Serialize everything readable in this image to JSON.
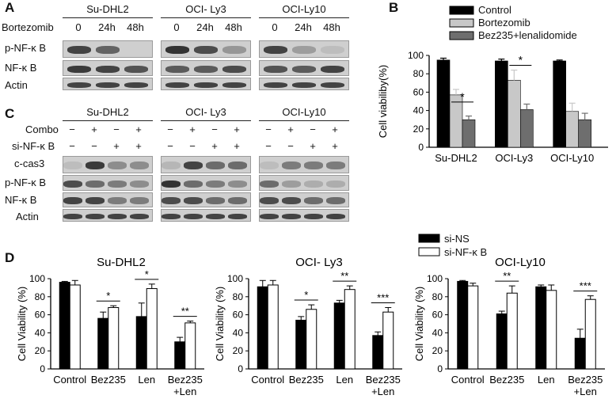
{
  "panel_a": {
    "letter": "A",
    "cells": [
      "Su-DHL2",
      "OCI- Ly3",
      "OCI-Ly10"
    ],
    "treatment_label": "Bortezomib",
    "times": [
      "0",
      "24h",
      "48h"
    ],
    "rows": [
      "p-NF-κ B",
      "NF-κ B",
      "Actin"
    ],
    "band_levels": [
      [
        [
          0.85,
          0.65,
          0.0
        ],
        [
          0.95,
          0.8,
          0.35
        ],
        [
          0.85,
          0.3,
          0.1
        ]
      ],
      [
        [
          0.9,
          0.85,
          0.75
        ],
        [
          0.7,
          0.7,
          0.8
        ],
        [
          0.75,
          0.7,
          0.85
        ]
      ],
      [
        [
          0.85,
          0.85,
          0.85
        ],
        [
          0.85,
          0.85,
          0.85
        ],
        [
          0.85,
          0.85,
          0.85
        ]
      ]
    ]
  },
  "panel_c": {
    "letter": "C",
    "cells": [
      "Su-DHL2",
      "OCI- Ly3",
      "OCI-Ly10"
    ],
    "combo_label": "Combo",
    "si_label": "si-NF-κ B",
    "combo_signs": [
      "−",
      "+",
      "−",
      "+"
    ],
    "si_signs": [
      "−",
      "−",
      "+",
      "+"
    ],
    "rows": [
      "c-cas3",
      "p-NF-κ B",
      "NF-κ B",
      "Actin"
    ],
    "band_levels": [
      [
        [
          0.1,
          0.9,
          0.4,
          0.4
        ],
        [
          0.15,
          0.85,
          0.6,
          0.6
        ],
        [
          0.1,
          0.5,
          0.5,
          0.5
        ]
      ],
      [
        [
          0.8,
          0.6,
          0.5,
          0.4
        ],
        [
          0.95,
          0.6,
          0.5,
          0.4
        ],
        [
          0.6,
          0.3,
          0.2,
          0.2
        ]
      ],
      [
        [
          0.85,
          0.85,
          0.5,
          0.5
        ],
        [
          0.8,
          0.8,
          0.6,
          0.6
        ],
        [
          0.8,
          0.8,
          0.6,
          0.6
        ]
      ],
      [
        [
          0.85,
          0.85,
          0.85,
          0.85
        ],
        [
          0.85,
          0.85,
          0.85,
          0.85
        ],
        [
          0.85,
          0.85,
          0.85,
          0.85
        ]
      ]
    ]
  },
  "panel_b": {
    "letter": "B",
    "chart_data": {
      "type": "bar",
      "categories": [
        "Su-DHL2",
        "OCI-Ly3",
        "OCI-Ly10"
      ],
      "ylabel": "Cell viabiliby(%)",
      "ylim": [
        0,
        100
      ],
      "yticks": [
        "0",
        "20",
        "40",
        "60",
        "80",
        "100"
      ],
      "legend_position": "top",
      "series": [
        {
          "name": "Control",
          "color": "#000000",
          "values": [
            95,
            94,
            94
          ],
          "errors": [
            2,
            2,
            1
          ]
        },
        {
          "name": "Bortezomib",
          "color": "#c8c8c8",
          "values": [
            57,
            73,
            39
          ],
          "errors": [
            6,
            11,
            9
          ]
        },
        {
          "name": "Bez235+lenalidomide",
          "color": "#6e6e6e",
          "values": [
            30,
            41,
            30
          ],
          "errors": [
            4,
            6,
            7
          ]
        }
      ],
      "annotations": [
        "*",
        "*"
      ]
    }
  },
  "panel_d": {
    "letter": "D",
    "legend": [
      {
        "name": "si-NS",
        "color": "#000000"
      },
      {
        "name": "si-NF-κ B",
        "color": "#ffffff"
      }
    ],
    "chart_data": [
      {
        "type": "bar",
        "title": "Su-DHL2",
        "ylabel": "Cell Viability (%)",
        "ylim": [
          0,
          100
        ],
        "yticks": [
          "0",
          "20",
          "40",
          "60",
          "80",
          "100"
        ],
        "categories": [
          "Control",
          "Bez235",
          "Len",
          "Bez235",
          "+Len"
        ],
        "groups": [
          {
            "ns": 96,
            "ns_err": 1,
            "si": 93,
            "si_err": 5,
            "sig": ""
          },
          {
            "ns": 56,
            "ns_err": 7,
            "si": 68,
            "si_err": 2,
            "sig": "*"
          },
          {
            "ns": 58,
            "ns_err": 15,
            "si": 89,
            "si_err": 5,
            "sig": "*"
          },
          {
            "ns": 30,
            "ns_err": 5,
            "si": 51,
            "si_err": 2,
            "sig": "**"
          }
        ]
      },
      {
        "type": "bar",
        "title": "OCI- Ly3",
        "ylabel": "Cell Viability (%)",
        "ylim": [
          0,
          100
        ],
        "yticks": [
          "0",
          "20",
          "40",
          "60",
          "80",
          "100"
        ],
        "categories": [
          "Control",
          "Bez235",
          "Len",
          "Bez235",
          "+Len"
        ],
        "groups": [
          {
            "ns": 91,
            "ns_err": 7,
            "si": 93,
            "si_err": 5,
            "sig": ""
          },
          {
            "ns": 54,
            "ns_err": 4,
            "si": 66,
            "si_err": 5,
            "sig": "*"
          },
          {
            "ns": 73,
            "ns_err": 3,
            "si": 88,
            "si_err": 4,
            "sig": "**"
          },
          {
            "ns": 37,
            "ns_err": 4,
            "si": 63,
            "si_err": 5,
            "sig": "***"
          }
        ]
      },
      {
        "type": "bar",
        "title": "OCI-Ly10",
        "ylabel": "Cell Viability (%)",
        "ylim": [
          0,
          100
        ],
        "yticks": [
          "0",
          "20",
          "40",
          "60",
          "80",
          "100"
        ],
        "categories": [
          "Control",
          "Bez235",
          "Len",
          "Bez235",
          "+Len"
        ],
        "groups": [
          {
            "ns": 97,
            "ns_err": 1,
            "si": 92,
            "si_err": 3,
            "sig": ""
          },
          {
            "ns": 61,
            "ns_err": 3,
            "si": 84,
            "si_err": 8,
            "sig": "**"
          },
          {
            "ns": 91,
            "ns_err": 2,
            "si": 87,
            "si_err": 6,
            "sig": ""
          },
          {
            "ns": 34,
            "ns_err": 10,
            "si": 77,
            "si_err": 4,
            "sig": "***"
          }
        ]
      }
    ]
  }
}
